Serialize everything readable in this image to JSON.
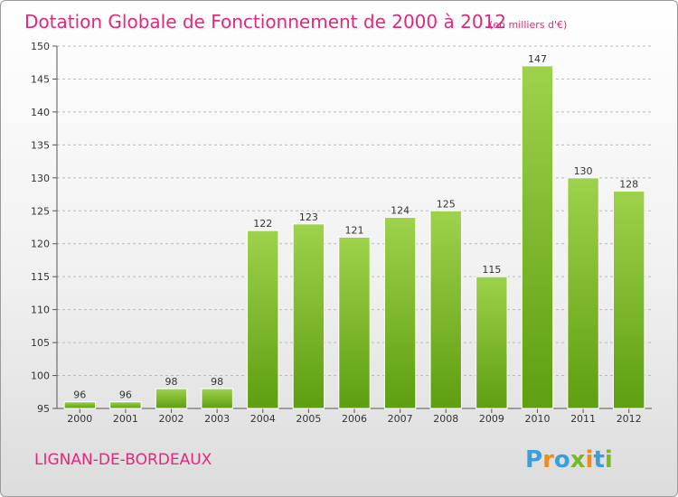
{
  "title": "Dotation Globale de Fonctionnement de 2000 à 2012",
  "subtitle": "(en milliers d'€)",
  "commune": "LIGNAN-DE-BORDEAUX",
  "logo": {
    "text": "Proxiti",
    "letters": [
      {
        "ch": "P",
        "color": "#3aa0dc"
      },
      {
        "ch": "r",
        "color": "#f08a1c"
      },
      {
        "ch": "o",
        "color": "#3aa0dc"
      },
      {
        "ch": "x",
        "color": "#7ab828"
      },
      {
        "ch": "i",
        "color": "#f08a1c"
      },
      {
        "ch": "t",
        "color": "#3aa0dc"
      },
      {
        "ch": "i",
        "color": "#7ab828"
      }
    ]
  },
  "colors": {
    "title": "#e3277f",
    "bar_light": "#9ed24c",
    "bar_dark": "#5e9e10",
    "grid": "#bbbbbb"
  },
  "chart_data": {
    "type": "bar",
    "categories": [
      "2000",
      "2001",
      "2002",
      "2003",
      "2004",
      "2005",
      "2006",
      "2007",
      "2008",
      "2009",
      "2010",
      "2011",
      "2012"
    ],
    "values": [
      96,
      96,
      98,
      98,
      122,
      123,
      121,
      124,
      125,
      115,
      147,
      130,
      128
    ],
    "ylim": [
      95,
      150
    ],
    "yticks": [
      95,
      100,
      105,
      110,
      115,
      120,
      125,
      130,
      135,
      140,
      145,
      150
    ],
    "grid": true,
    "legend": "none"
  }
}
